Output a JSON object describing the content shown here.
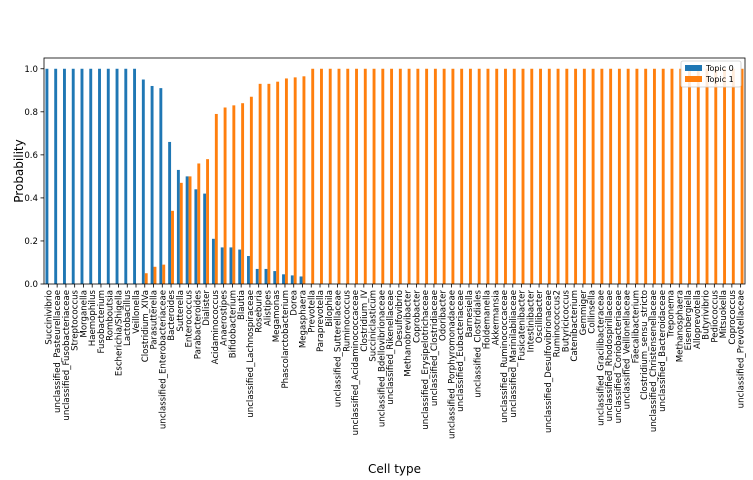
{
  "chart_data": {
    "type": "bar",
    "xlabel": "Cell type",
    "ylabel": "Probability",
    "ylim": [
      0,
      1.05
    ],
    "yticks": [
      "0.0",
      "0.2",
      "0.4",
      "0.6",
      "0.8",
      "1.0"
    ],
    "grid": false,
    "legend_position": "top-right",
    "categories": [
      "Succinivibrio",
      "unclassified_Pasteurellaceae",
      "unclassified_Fusobacteriaceae",
      "Streptococcus",
      "Morganella",
      "Haemophilus",
      "Fusobacterium",
      "Romboutsia",
      "Escherichia/Shigella",
      "Lactobacillus",
      "Veillonella",
      "Clostridium_XIVa",
      "Parasutterella",
      "unclassified_Enterobacteriaceae",
      "Bacteroides",
      "Sutterella",
      "Enterococcus",
      "Parabacteroides",
      "Dialister",
      "Acidaminococcus",
      "Anaerostipes",
      "Bifidobacterium",
      "Blautia",
      "unclassified_Lachnospiraceae",
      "Roseburia",
      "Alistipes",
      "Megamonas",
      "Phascolarctobacterium",
      "Dorea",
      "Megasphaera",
      "Prevotella",
      "Paraprevotella",
      "Bilophila",
      "unclassified_Sutterellaceae",
      "Ruminococcus",
      "unclassified_Acidaminococcaceae",
      "Clostridium_IV",
      "Succiniclasticum",
      "unclassified_Bdellovibrionaceae",
      "unclassified_Rikenellaceae",
      "Desulfovibrio",
      "Methanobrevibacter",
      "Coprobacter",
      "unclassified_Erysipelotrichaceae",
      "unclassified_Clostridiaceae",
      "Odoribacter",
      "unclassified_Porphyromonadaceae",
      "unclassified_Eubacteriaceae",
      "Barnesiella",
      "unclassified_Clostridiales",
      "Holdemanella",
      "Akkermansia",
      "unclassified_Ruminococcaceae",
      "unclassified_Marinilabiliaceae",
      "Fusicatenibacter",
      "Intestinibacter",
      "Oscillibacter",
      "unclassified_Desulfovibrionaceae",
      "Ruminococcus2",
      "Butyricicoccus",
      "Catenibacterium",
      "Gemmiger",
      "Collinsella",
      "unclassified_Gracilibacteraceae",
      "unclassified_Rhodospirillaceae",
      "unclassified_Coriobacteriaceae",
      "unclassified_Veillonellaceae",
      "Faecalibacterium",
      "Clostridium_sensu_stricto",
      "unclassified_Christensenellaceae",
      "unclassified_Bacteroidaceae",
      "Treponema",
      "Methanosphaera",
      "Eisenbergiella",
      "Alloprevotella",
      "Butyrivibrio",
      "Pediococcus",
      "Mitsuokella",
      "Coprococcus",
      "unclassified_Prevotellaceae"
    ],
    "series": [
      {
        "name": "Topic 0",
        "color": "#1f77b4",
        "values": [
          1.0,
          1.0,
          1.0,
          1.0,
          1.0,
          1.0,
          1.0,
          1.0,
          1.0,
          1.0,
          1.0,
          0.95,
          0.92,
          0.91,
          0.66,
          0.53,
          0.5,
          0.44,
          0.42,
          0.21,
          0.17,
          0.17,
          0.16,
          0.13,
          0.07,
          0.07,
          0.06,
          0.045,
          0.04,
          0.035,
          0,
          0,
          0,
          0,
          0,
          0,
          0,
          0,
          0,
          0,
          0,
          0,
          0,
          0,
          0,
          0,
          0,
          0,
          0,
          0,
          0,
          0,
          0,
          0,
          0,
          0,
          0,
          0,
          0,
          0,
          0,
          0,
          0,
          0,
          0,
          0,
          0,
          0,
          0,
          0,
          0,
          0,
          0,
          0,
          0,
          0,
          0,
          0,
          0,
          0
        ]
      },
      {
        "name": "Topic 1",
        "color": "#ff7f0e",
        "values": [
          0,
          0,
          0,
          0,
          0,
          0,
          0,
          0,
          0,
          0,
          0,
          0.05,
          0.08,
          0.09,
          0.34,
          0.47,
          0.5,
          0.56,
          0.58,
          0.79,
          0.82,
          0.83,
          0.84,
          0.87,
          0.93,
          0.93,
          0.94,
          0.955,
          0.96,
          0.965,
          1.0,
          1.0,
          1.0,
          1.0,
          1.0,
          1.0,
          1.0,
          1.0,
          1.0,
          1.0,
          1.0,
          1.0,
          1.0,
          1.0,
          1.0,
          1.0,
          1.0,
          1.0,
          1.0,
          1.0,
          1.0,
          1.0,
          1.0,
          1.0,
          1.0,
          1.0,
          1.0,
          1.0,
          1.0,
          1.0,
          1.0,
          1.0,
          1.0,
          1.0,
          1.0,
          1.0,
          1.0,
          1.0,
          1.0,
          1.0,
          1.0,
          1.0,
          1.0,
          1.0,
          1.0,
          1.0,
          1.0,
          1.0,
          1.0,
          1.0
        ]
      }
    ]
  }
}
